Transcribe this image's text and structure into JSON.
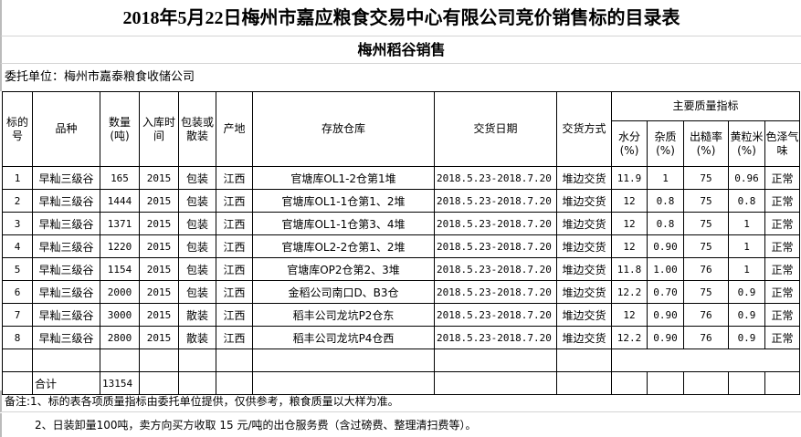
{
  "title": "2018年5月22日梅州市嘉应粮食交易中心有限公司竞价销售标的目录表",
  "subtitle": "梅州稻谷销售",
  "delegate": "委托单位：梅州市嘉泰粮食收储公司",
  "headers": {
    "no": "标的号",
    "variety": "品种",
    "qty": "数量(吨)",
    "year": "入库时间",
    "pack": "包装或散装",
    "origin": "产地",
    "warehouse": "存放仓库",
    "date": "交货日期",
    "method": "交货方式",
    "quality": "主要质量指标",
    "moisture": "水分(%)",
    "impurity": "杂质(%)",
    "hull": "出糙率(%)",
    "yellow": "黄粒米(%)",
    "color": "色泽气味"
  },
  "rows": [
    [
      "1",
      "早籼三级谷",
      "165",
      "2015",
      "包装",
      "江西",
      "官塘库OL1-2仓第1堆",
      "2018.5.23-2018.7.20",
      "堆边交货",
      "11.9",
      "1",
      "75",
      "0.96",
      "正常"
    ],
    [
      "2",
      "早籼三级谷",
      "1444",
      "2015",
      "包装",
      "江西",
      "官塘库OL1-1仓第1、2堆",
      "2018.5.23-2018.7.20",
      "堆边交货",
      "12",
      "0.8",
      "75",
      "0.8",
      "正常"
    ],
    [
      "3",
      "早籼三级谷",
      "1371",
      "2015",
      "包装",
      "江西",
      "官塘库OL1-1仓第3、4堆",
      "2018.5.23-2018.7.20",
      "堆边交货",
      "12",
      "0.8",
      "75",
      "1",
      "正常"
    ],
    [
      "4",
      "早籼三级谷",
      "1220",
      "2015",
      "包装",
      "江西",
      "官塘库OL2-2仓第1、2堆",
      "2018.5.23-2018.7.20",
      "堆边交货",
      "12",
      "0.90",
      "75",
      "1",
      "正常"
    ],
    [
      "5",
      "早籼三级谷",
      "1154",
      "2015",
      "包装",
      "江西",
      "官塘库OP2仓第2、3堆",
      "2018.5.23-2018.7.20",
      "堆边交货",
      "11.8",
      "1.00",
      "76",
      "1",
      "正常"
    ],
    [
      "6",
      "早籼三级谷",
      "2000",
      "2015",
      "包装",
      "江西",
      "金稻公司南口D、B3仓",
      "2018.5.23-2018.7.20",
      "堆边交货",
      "12.2",
      "0.70",
      "75",
      "0.9",
      "正常"
    ],
    [
      "7",
      "早籼三级谷",
      "3000",
      "2015",
      "散装",
      "江西",
      "稻丰公司龙坑P2仓东",
      "2018.5.23-2018.7.20",
      "堆边交货",
      "12",
      "0.90",
      "76",
      "0.9",
      "正常"
    ],
    [
      "8",
      "早籼三级谷",
      "2800",
      "2015",
      "散装",
      "江西",
      "稻丰公司龙坑P4仓西",
      "2018.5.23-2018.7.20",
      "堆边交货",
      "12.2",
      "0.90",
      "76",
      "0.9",
      "正常"
    ]
  ],
  "total": {
    "label": "合计",
    "qty": "13154"
  },
  "notes": [
    "备注:1、标的表各项质量指标由委托单位提供，仅供参考，粮食质量以大样为准。",
    "2、日装卸量100吨，卖方向买方收取 15 元/吨的出仓服务费（含过磅费、整理清扫费等）。"
  ]
}
